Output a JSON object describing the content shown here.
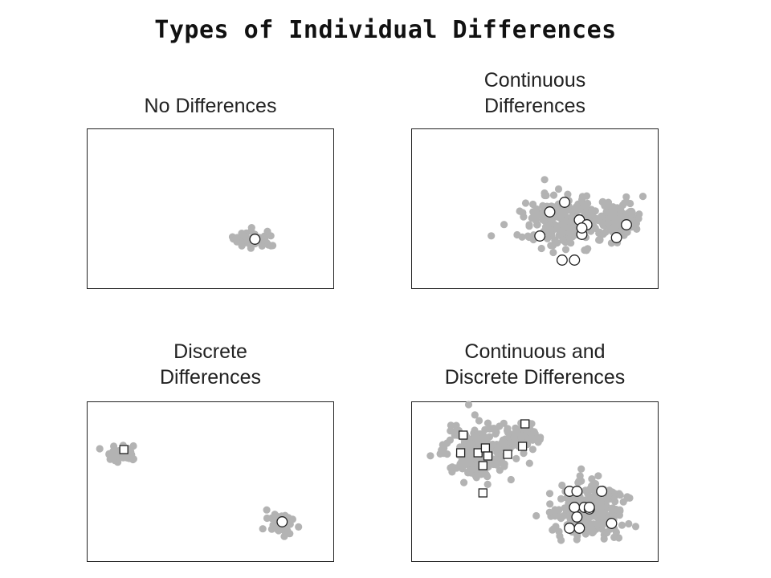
{
  "title": "Types of Individual Differences",
  "colors": {
    "population": "#b3b3b3",
    "individual_fill": "#ffffff",
    "individual_stroke": "#222222",
    "frame": "#222222"
  },
  "chart_data": [
    {
      "type": "scatter",
      "title": "No Differences",
      "xlabel": "",
      "ylabel": "",
      "population_clusters": [
        {
          "center": [
            0.68,
            0.69
          ],
          "spread": [
            0.08,
            0.05
          ],
          "n": 45
        }
      ],
      "individual_means": {
        "marker": "circle",
        "points": [
          [
            0.68,
            0.69
          ]
        ]
      }
    },
    {
      "type": "scatter",
      "title": "Continuous\nDifferences",
      "xlabel": "",
      "ylabel": "",
      "population_clusters": [
        {
          "center": [
            0.63,
            0.58
          ],
          "spread": [
            0.16,
            0.14
          ],
          "n": 260
        },
        {
          "center": [
            0.85,
            0.55
          ],
          "spread": [
            0.07,
            0.09
          ],
          "n": 90
        }
      ],
      "individual_means": {
        "marker": "circle",
        "points": [
          [
            0.56,
            0.52
          ],
          [
            0.62,
            0.46
          ],
          [
            0.68,
            0.57
          ],
          [
            0.71,
            0.6
          ],
          [
            0.52,
            0.67
          ],
          [
            0.69,
            0.66
          ],
          [
            0.61,
            0.82
          ],
          [
            0.66,
            0.82
          ],
          [
            0.83,
            0.68
          ],
          [
            0.87,
            0.6
          ],
          [
            0.69,
            0.62
          ]
        ]
      }
    },
    {
      "type": "scatter",
      "title": "Discrete\nDifferences",
      "xlabel": "",
      "ylabel": "",
      "population_clusters": [
        {
          "center": [
            0.14,
            0.32
          ],
          "spread": [
            0.06,
            0.05
          ],
          "n": 38
        },
        {
          "center": [
            0.79,
            0.76
          ],
          "spread": [
            0.05,
            0.06
          ],
          "n": 42
        }
      ],
      "individual_means": {
        "points": [
          {
            "marker": "square",
            "xy": [
              0.15,
              0.3
            ]
          },
          {
            "marker": "circle",
            "xy": [
              0.79,
              0.75
            ]
          }
        ]
      }
    },
    {
      "type": "scatter",
      "title": "Continuous and\nDiscrete Differences",
      "xlabel": "",
      "ylabel": "",
      "population_clusters": [
        {
          "center": [
            0.27,
            0.32
          ],
          "spread": [
            0.12,
            0.15
          ],
          "n": 230
        },
        {
          "center": [
            0.43,
            0.22
          ],
          "spread": [
            0.07,
            0.08
          ],
          "n": 80
        },
        {
          "center": [
            0.72,
            0.68
          ],
          "spread": [
            0.13,
            0.15
          ],
          "n": 260
        }
      ],
      "individual_means": {
        "points": [
          {
            "marker": "square",
            "xy": [
              0.21,
              0.21
            ]
          },
          {
            "marker": "square",
            "xy": [
              0.2,
              0.32
            ]
          },
          {
            "marker": "square",
            "xy": [
              0.27,
              0.32
            ]
          },
          {
            "marker": "square",
            "xy": [
              0.3,
              0.29
            ]
          },
          {
            "marker": "square",
            "xy": [
              0.31,
              0.34
            ]
          },
          {
            "marker": "square",
            "xy": [
              0.29,
              0.4
            ]
          },
          {
            "marker": "square",
            "xy": [
              0.39,
              0.33
            ]
          },
          {
            "marker": "square",
            "xy": [
              0.45,
              0.28
            ]
          },
          {
            "marker": "square",
            "xy": [
              0.46,
              0.14
            ]
          },
          {
            "marker": "square",
            "xy": [
              0.29,
              0.57
            ]
          },
          {
            "marker": "circle",
            "xy": [
              0.64,
              0.56
            ]
          },
          {
            "marker": "circle",
            "xy": [
              0.67,
              0.56
            ]
          },
          {
            "marker": "circle",
            "xy": [
              0.77,
              0.56
            ]
          },
          {
            "marker": "circle",
            "xy": [
              0.66,
              0.66
            ]
          },
          {
            "marker": "circle",
            "xy": [
              0.7,
              0.66
            ]
          },
          {
            "marker": "circle",
            "xy": [
              0.72,
              0.67
            ]
          },
          {
            "marker": "circle",
            "xy": [
              0.67,
              0.72
            ]
          },
          {
            "marker": "circle",
            "xy": [
              0.64,
              0.79
            ]
          },
          {
            "marker": "circle",
            "xy": [
              0.68,
              0.79
            ]
          },
          {
            "marker": "circle",
            "xy": [
              0.81,
              0.76
            ]
          },
          {
            "marker": "circle",
            "xy": [
              0.72,
              0.66
            ]
          }
        ]
      }
    }
  ]
}
